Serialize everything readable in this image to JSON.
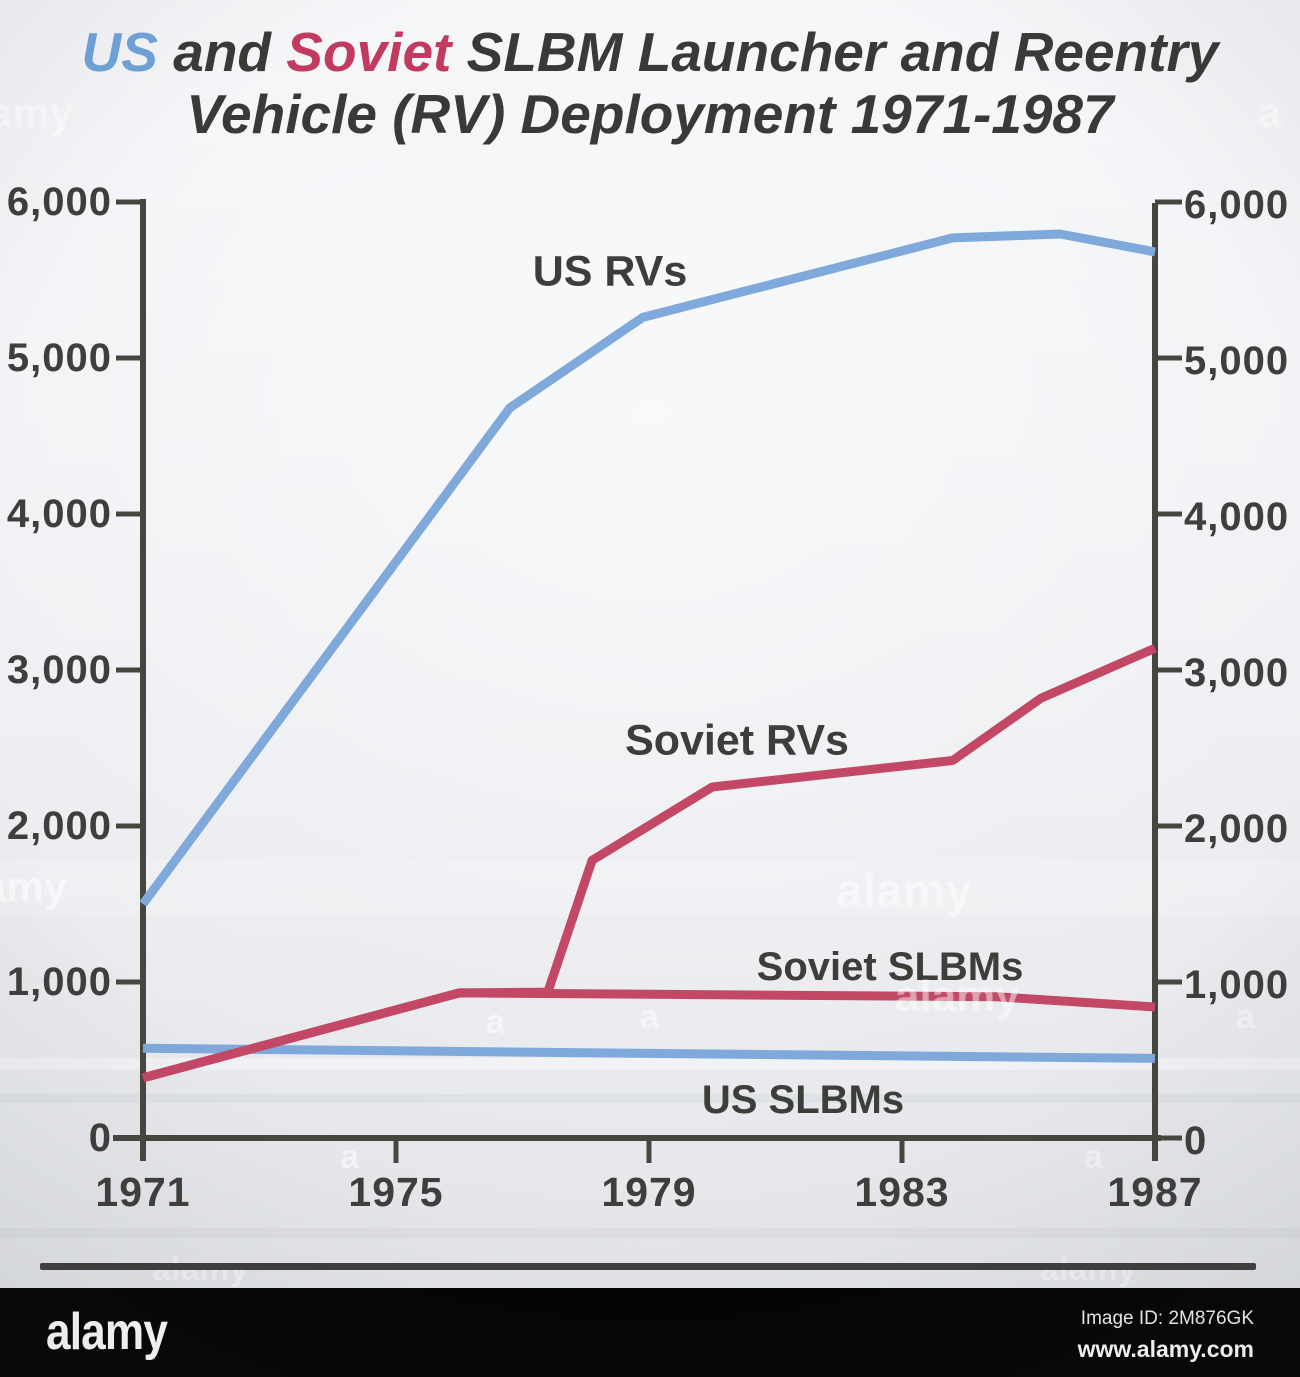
{
  "title": {
    "us": "US",
    "and": " and ",
    "soviet": "Soviet",
    "rest": " SLBM Launcher and Reentry",
    "line2": "Vehicle (RV) Deployment 1971-1987"
  },
  "colors": {
    "us_blue": "#7fa9da",
    "soviet_red": "#c24866",
    "title_blue": "#6fa3d8",
    "title_red": "#c23a5f",
    "axis": "#46463f",
    "text": "#3d3f3c",
    "background": "#eef0f3",
    "footer_bg": "#030303"
  },
  "chart_data": {
    "type": "line",
    "title": "US and Soviet SLBM Launcher and Reentry Vehicle (RV) Deployment 1971-1987",
    "xlabel": "",
    "ylabel": "",
    "xlim": [
      1971,
      1987
    ],
    "ylim": [
      0,
      6000
    ],
    "grid": false,
    "dual_y_axis": true,
    "legend_position": "inline-labels",
    "x_ticks": [
      1971,
      1975,
      1979,
      1983,
      1987
    ],
    "y_ticks": [
      0,
      1000,
      2000,
      3000,
      4000,
      5000,
      6000
    ],
    "y_tick_labels": [
      "0",
      "1,000",
      "2,000",
      "3,000",
      "4,000",
      "5,000",
      "6,000"
    ],
    "series": [
      {
        "name": "US SLBMs",
        "color": "#7fa9da",
        "points": [
          [
            1971,
            575
          ],
          [
            1987,
            510
          ]
        ]
      },
      {
        "name": "Soviet SLBMs",
        "color": "#c24866",
        "points": [
          [
            1971,
            385
          ],
          [
            1976,
            930
          ],
          [
            1984.5,
            905
          ],
          [
            1987,
            840
          ]
        ]
      },
      {
        "name": "Soviet RVs",
        "color": "#c24866",
        "points": [
          [
            1971,
            385
          ],
          [
            1976,
            930
          ],
          [
            1977.4,
            935
          ],
          [
            1978.1,
            1780
          ],
          [
            1980,
            2250
          ],
          [
            1983.8,
            2420
          ],
          [
            1985.2,
            2820
          ],
          [
            1987,
            3140
          ]
        ]
      },
      {
        "name": "US RVs",
        "color": "#7fa9da",
        "points": [
          [
            1971,
            1500
          ],
          [
            1976.8,
            4680
          ],
          [
            1978.9,
            5260
          ],
          [
            1983.8,
            5770
          ],
          [
            1985.5,
            5795
          ],
          [
            1987,
            5680
          ]
        ]
      }
    ]
  },
  "watermark": {
    "text": "alamy",
    "short": "a"
  },
  "footer": {
    "logo": "alamy",
    "image_id": "Image ID: 2M876GK",
    "url": "www.alamy.com"
  }
}
